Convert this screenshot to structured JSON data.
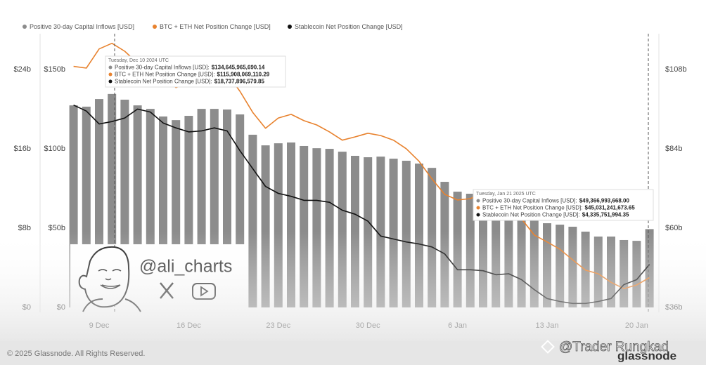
{
  "chart_data": {
    "type": "bar-line",
    "categories": [
      null,
      null,
      "9 Dec",
      null,
      null,
      null,
      null,
      null,
      null,
      "16 Dec",
      null,
      null,
      null,
      null,
      null,
      null,
      "23 Dec",
      null,
      null,
      null,
      null,
      null,
      null,
      "30 Dec",
      null,
      null,
      null,
      null,
      null,
      null,
      "6 Jan",
      null,
      null,
      null,
      null,
      null,
      null,
      "13 Jan",
      null,
      null,
      null,
      null,
      null,
      null,
      "20 Jan",
      null
    ],
    "series": [
      {
        "name": "Positive 30-day Capital Inflows [USD]",
        "type": "bar",
        "axis": "y",
        "color": "#8c8c8c",
        "values": [
          127.4,
          126.6,
          131.4,
          134.6,
          131,
          127.4,
          125.2,
          120.4,
          118.1,
          120.8,
          125.2,
          125.2,
          124.8,
          121.7,
          108.9,
          102.2,
          103.5,
          104,
          101.8,
          100.4,
          100,
          98.2,
          95.6,
          94.7,
          95.1,
          93.8,
          92.5,
          90.7,
          88,
          79.2,
          73,
          71.7,
          72.1,
          69.9,
          65.5,
          61,
          57.5,
          53.1,
          52.2,
          50.9,
          47.8,
          44.7,
          44.7,
          42.5,
          42,
          49.4
        ]
      },
      {
        "name": "BTC + ETH Net Position Change [USD]",
        "type": "line",
        "axis": "y2",
        "color": "#e8822e",
        "values": [
          108.9,
          108.4,
          114.2,
          115.9,
          113.5,
          109.9,
          107.8,
          105.7,
          102.5,
          104,
          105.2,
          104.6,
          106.7,
          101.4,
          95,
          90.2,
          93.3,
          94.4,
          92.5,
          91.2,
          89.1,
          86.6,
          87.6,
          88.7,
          88,
          86.6,
          84,
          80.2,
          74.9,
          70.2,
          68.5,
          68.9,
          70.6,
          68.9,
          66.4,
          62.8,
          57.9,
          55.8,
          53.6,
          50.4,
          47.3,
          46.2,
          43.6,
          41.7,
          42.8,
          45.03
        ]
      },
      {
        "name": "Stablecoin Net Position Change [USD]",
        "type": "line",
        "axis": "y3",
        "color": "#111111",
        "values": [
          20.4,
          19.8,
          18.5,
          18.74,
          19.1,
          20,
          19.7,
          18.6,
          18.1,
          17.7,
          17.8,
          18.1,
          17.8,
          15.8,
          14,
          12.2,
          11.5,
          11.2,
          10.8,
          10.8,
          10.6,
          9.8,
          9.4,
          8.7,
          7.2,
          6.9,
          6.6,
          6.4,
          6.1,
          5.4,
          3.8,
          3.8,
          3.7,
          3.3,
          3.4,
          2.8,
          1.8,
          0.9,
          0.6,
          0.4,
          0.4,
          0.6,
          0.9,
          2.3,
          2.8,
          4.34
        ]
      }
    ],
    "ylim": [
      0,
      172.6
    ],
    "yticks": [
      {
        "value": 0,
        "label": "$0"
      },
      {
        "value": 50,
        "label": "$50b"
      },
      {
        "value": 100,
        "label": "$100b"
      },
      {
        "value": 150,
        "label": "$150b"
      }
    ],
    "y2lim": [
      36,
      118.8
    ],
    "y2ticks": [
      {
        "value": 36,
        "label": "$36b"
      },
      {
        "value": 60,
        "label": "$60b"
      },
      {
        "value": 84,
        "label": "$84b"
      },
      {
        "value": 108,
        "label": "$108b"
      }
    ],
    "y3lim": [
      0,
      27.6
    ],
    "y3ticks": [
      {
        "value": 0,
        "label": "$0"
      },
      {
        "value": 8,
        "label": "$8b"
      },
      {
        "value": 16,
        "label": "$16b"
      },
      {
        "value": 24,
        "label": "$24b"
      }
    ],
    "grid": false,
    "legend": "top",
    "tooltips": [
      {
        "title": "Tuesday, Dec 10 2024 UTC",
        "rows": [
          {
            "label": "Positive 30-day Capital Inflows [USD]:",
            "value": "$134,645,965,690.14"
          },
          {
            "label": "BTC + ETH Net Position Change [USD]:",
            "value": "$115,908,069,110.29"
          },
          {
            "label": "Stablecoin Net Position Change [USD]:",
            "value": "$18,737,896,579.85"
          }
        ]
      },
      {
        "title": "Tuesday, Jan 21 2025 UTC",
        "rows": [
          {
            "label": "Positive 30-day Capital Inflows [USD]:",
            "value": "$49,366,993,668.00"
          },
          {
            "label": "BTC + ETH Net Position Change [USD]:",
            "value": "$45,031,241,673.65"
          },
          {
            "label": "Stablecoin Net Position Change [USD]:",
            "value": "$4,335,751,994.35"
          }
        ]
      }
    ]
  },
  "watermark": {
    "handle": "@ali_charts"
  },
  "footer": {
    "copyright": "© 2025 Glassnode. All Rights Reserved.",
    "brand": "glassnode",
    "credit": "@Trader Rungkad"
  }
}
